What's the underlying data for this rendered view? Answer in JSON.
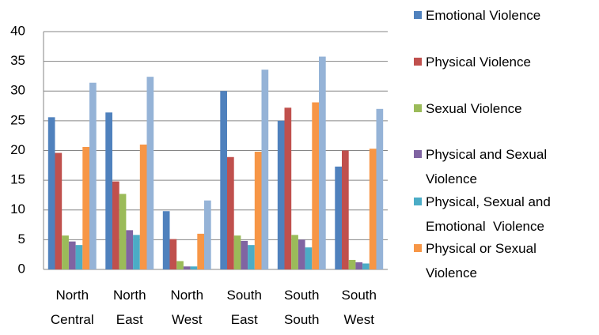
{
  "chart_data": {
    "type": "bar",
    "categories": [
      "North Central",
      "North East",
      "North West",
      "South East",
      "South South",
      "South West"
    ],
    "series": [
      {
        "name": "Emotional Violence",
        "color": "#4f81bd",
        "values": [
          25.6,
          26.4,
          9.8,
          30.0,
          25.0,
          17.3
        ]
      },
      {
        "name": "Physical Violence",
        "color": "#c0504d",
        "values": [
          19.6,
          14.8,
          5.1,
          18.9,
          27.2,
          20.0
        ]
      },
      {
        "name": "Sexual Violence",
        "color": "#9bbb59",
        "values": [
          5.7,
          12.7,
          1.4,
          5.7,
          5.8,
          1.6
        ]
      },
      {
        "name": "Physical and Sexual Violence",
        "color": "#8064a2",
        "values": [
          4.7,
          6.6,
          0.5,
          4.8,
          5.0,
          1.2
        ]
      },
      {
        "name": "Physical, Sexual and Emotional  Violence",
        "color": "#4bacc6",
        "values": [
          4.1,
          5.8,
          0.5,
          4.1,
          3.7,
          1.0
        ]
      },
      {
        "name": "Physical or Sexual Violence",
        "color": "#f79646",
        "values": [
          20.6,
          21.0,
          6.0,
          19.8,
          28.1,
          20.3
        ]
      },
      {
        "color": "#95b3d7",
        "values": [
          31.4,
          32.4,
          11.6,
          33.6,
          35.8,
          27.0
        ]
      }
    ],
    "ylim": [
      0,
      40
    ],
    "yticks": [
      0,
      5,
      10,
      15,
      20,
      25,
      30,
      35,
      40
    ],
    "grid": true,
    "legend": "right"
  }
}
